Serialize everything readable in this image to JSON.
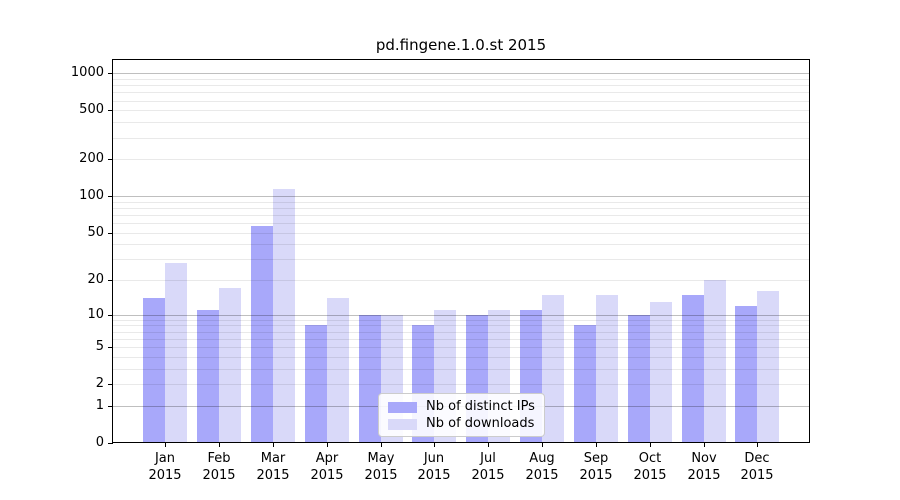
{
  "chart_data": {
    "type": "bar",
    "title": "pd.fingene.1.0.st 2015",
    "categories": [
      "Jan",
      "Feb",
      "Mar",
      "Apr",
      "May",
      "Jun",
      "Jul",
      "Aug",
      "Sep",
      "Oct",
      "Nov",
      "Dec"
    ],
    "x_tick_year_line": "2015",
    "series": [
      {
        "name": "Nb of distinct IPs",
        "color": "#a8a8fa",
        "values": [
          14,
          11,
          57,
          8,
          10,
          8,
          10,
          11,
          8,
          10,
          15,
          12
        ]
      },
      {
        "name": "Nb of downloads",
        "color": "#d9d9f9",
        "values": [
          28,
          17,
          115,
          14,
          10,
          11,
          11,
          15,
          15,
          13,
          20,
          16
        ]
      }
    ],
    "y_axis": {
      "scale": "log10(value+1)",
      "tick_labels": [
        "0",
        "1",
        "2",
        "5",
        "10",
        "20",
        "50",
        "100",
        "200",
        "500",
        "1000"
      ],
      "tick_values": [
        0,
        1,
        2,
        5,
        10,
        20,
        50,
        100,
        200,
        500,
        1000
      ],
      "minor_grid_values": [
        3,
        4,
        6,
        7,
        8,
        9,
        30,
        40,
        60,
        70,
        80,
        90,
        300,
        400,
        600,
        700,
        800,
        900
      ],
      "major_grid_values": [
        1,
        10,
        100,
        1000
      ],
      "range": [
        0,
        1280
      ],
      "grid": "on"
    },
    "legend": {
      "position": "lower-center"
    }
  }
}
